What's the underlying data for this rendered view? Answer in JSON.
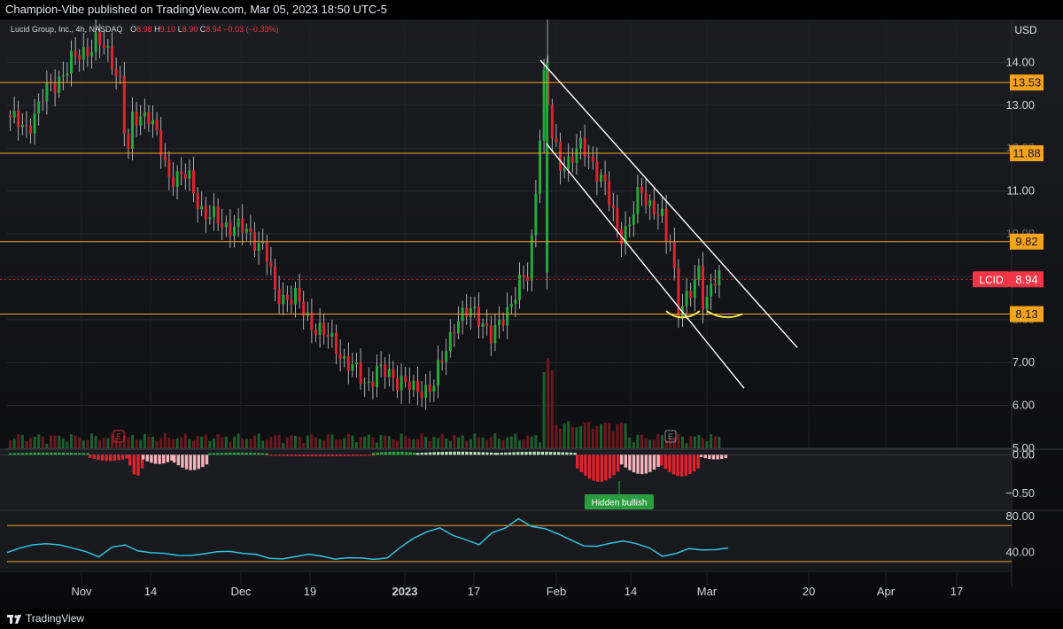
{
  "header": {
    "publish_text": "Champion-Vibe published on TradingView.com, Mar 05, 2023 18:50 UTC-5"
  },
  "legend": {
    "symbol_label": "Lucid Group, Inc., 4h, NASDAQ",
    "o_key": "O",
    "o_val": "8.98",
    "h_key": "H",
    "h_val": "9.10",
    "l_key": "L",
    "l_val": "8.90",
    "c_key": "C",
    "c_val": "8.94",
    "change": "−0.03 (−0.33%)"
  },
  "colors": {
    "up": "#22ab39",
    "down": "#e0242f",
    "level": "#f7a21b",
    "channel": "#ffffff",
    "rsi": "#2ec3e0",
    "pattern": "#f5e65a",
    "price_label": "#f23645"
  },
  "footer": {
    "brand": "TradingView"
  },
  "chart_data": [
    {
      "type": "candlestick",
      "symbol": "LCID",
      "exchange": "NASDAQ",
      "interval": "4h",
      "currency": "USD",
      "last_price": 8.94,
      "ylim": [
        5.0,
        15.0
      ],
      "y_ticks": [
        "5.00",
        "6.00",
        "7.00",
        "8.00",
        "9.00",
        "10.00",
        "11.00",
        "12.00",
        "13.00",
        "14.00"
      ],
      "x_ticks": [
        "Nov",
        "14",
        "Dec",
        "19",
        "2023",
        "17",
        "Feb",
        "14",
        "Mar",
        "20",
        "Apr",
        "17"
      ],
      "horizontal_levels": [
        13.53,
        11.88,
        9.82,
        8.13
      ],
      "current_price_tag": {
        "label": "LCID",
        "value": "8.94"
      },
      "price_path": [
        {
          "date": "Oct 24",
          "price": 12.8
        },
        {
          "date": "Oct 26",
          "price": 12.4
        },
        {
          "date": "Oct 28",
          "price": 13.2
        },
        {
          "date": "Oct 31",
          "price": 14.0
        },
        {
          "date": "Nov 2",
          "price": 14.3
        },
        {
          "date": "Nov 4",
          "price": 14.5
        },
        {
          "date": "Nov 7",
          "price": 14.1
        },
        {
          "date": "Nov 9",
          "price": 13.5
        },
        {
          "date": "Nov 10",
          "price": 11.5
        },
        {
          "date": "Nov 11",
          "price": 12.6
        },
        {
          "date": "Nov 14",
          "price": 12.9
        },
        {
          "date": "Nov 16",
          "price": 12.2
        },
        {
          "date": "Nov 18",
          "price": 11.4
        },
        {
          "date": "Nov 22",
          "price": 11.3
        },
        {
          "date": "Nov 25",
          "price": 10.5
        },
        {
          "date": "Nov 29",
          "price": 10.2
        },
        {
          "date": "Dec 1",
          "price": 10.2
        },
        {
          "date": "Dec 5",
          "price": 9.9
        },
        {
          "date": "Dec 7",
          "price": 9.7
        },
        {
          "date": "Dec 9",
          "price": 8.6
        },
        {
          "date": "Dec 13",
          "price": 8.5
        },
        {
          "date": "Dec 15",
          "price": 8.1
        },
        {
          "date": "Dec 19",
          "price": 7.6
        },
        {
          "date": "Dec 21",
          "price": 7.4
        },
        {
          "date": "Dec 23",
          "price": 7.0
        },
        {
          "date": "Dec 27",
          "price": 6.5
        },
        {
          "date": "Dec 29",
          "price": 6.8
        },
        {
          "date": "Jan 3",
          "price": 6.6
        },
        {
          "date": "Jan 5",
          "price": 6.3
        },
        {
          "date": "Jan 9",
          "price": 6.5
        },
        {
          "date": "Jan 11",
          "price": 7.2
        },
        {
          "date": "Jan 13",
          "price": 8.0
        },
        {
          "date": "Jan 17",
          "price": 8.2
        },
        {
          "date": "Jan 19",
          "price": 7.8
        },
        {
          "date": "Jan 20",
          "price": 7.5
        },
        {
          "date": "Jan 23",
          "price": 8.3
        },
        {
          "date": "Jan 25",
          "price": 8.8
        },
        {
          "date": "Jan 27",
          "price": 9.0
        },
        {
          "date": "Jan 30",
          "price": 14.0
        },
        {
          "date": "Jan 31",
          "price": 12.3
        },
        {
          "date": "Feb 2",
          "price": 11.6
        },
        {
          "date": "Feb 6",
          "price": 12.0
        },
        {
          "date": "Feb 8",
          "price": 11.7
        },
        {
          "date": "Feb 10",
          "price": 11.2
        },
        {
          "date": "Feb 13",
          "price": 10.0
        },
        {
          "date": "Feb 15",
          "price": 10.2
        },
        {
          "date": "Feb 17",
          "price": 11.0
        },
        {
          "date": "Feb 21",
          "price": 10.4
        },
        {
          "date": "Feb 22",
          "price": 9.8
        },
        {
          "date": "Feb 23",
          "price": 9.85
        },
        {
          "date": "Feb 24",
          "price": 8.3
        },
        {
          "date": "Feb 27",
          "price": 8.6
        },
        {
          "date": "Feb 28",
          "price": 9.2
        },
        {
          "date": "Mar 1",
          "price": 8.4
        },
        {
          "date": "Mar 2",
          "price": 8.7
        },
        {
          "date": "Mar 3",
          "price": 8.94
        }
      ],
      "earnings_markers": [
        "E",
        "E"
      ]
    },
    {
      "type": "histogram",
      "name": "momentum",
      "ylim": [
        -0.65,
        0.05
      ],
      "y_ticks": [
        "0.00",
        "−0.50"
      ],
      "annotation": "Hidden bullish"
    },
    {
      "type": "line",
      "name": "RSI",
      "ylim": [
        24,
        85
      ],
      "y_ticks": [
        "80.00",
        "40.00"
      ],
      "bands": [
        70,
        30
      ],
      "values": [
        40,
        44,
        49,
        51,
        48,
        44,
        42,
        36,
        45,
        48,
        43,
        40,
        38,
        37,
        38,
        38,
        40,
        42,
        40,
        37,
        33,
        34,
        36,
        37,
        36,
        34,
        34,
        33,
        33,
        35,
        45,
        55,
        64,
        68,
        58,
        54,
        50,
        62,
        66,
        78,
        70,
        66,
        60,
        55,
        48,
        46,
        50,
        54,
        50,
        44,
        36,
        40,
        44,
        42,
        44,
        46
      ]
    }
  ]
}
